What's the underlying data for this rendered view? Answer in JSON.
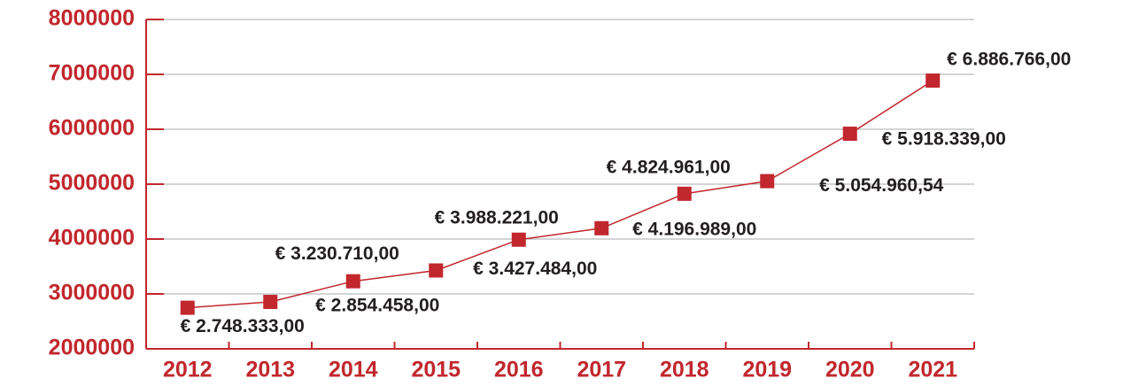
{
  "chart_data": {
    "type": "line",
    "categories": [
      "2012",
      "2013",
      "2014",
      "2015",
      "2016",
      "2017",
      "2018",
      "2019",
      "2020",
      "2021"
    ],
    "values": [
      2748333,
      2854458,
      3230710,
      3427484,
      3988221,
      4196989,
      4824961,
      5054960.54,
      5918339,
      6886766
    ],
    "value_labels": [
      "€ 2.748.333,00",
      "€ 2.854.458,00",
      "€ 3.230.710,00",
      "€ 3.427.484,00",
      "€ 3.988.221,00",
      "€ 4.196.989,00",
      "€ 4.824.961,00",
      "€ 5.054.960,54",
      "€ 5.918.339,00",
      "€ 6.886.766,00"
    ],
    "color": "#c1272d",
    "ylim": [
      2000000,
      8000000
    ],
    "yticks": [
      2000000,
      3000000,
      4000000,
      5000000,
      6000000,
      7000000,
      8000000
    ],
    "grid": true
  }
}
